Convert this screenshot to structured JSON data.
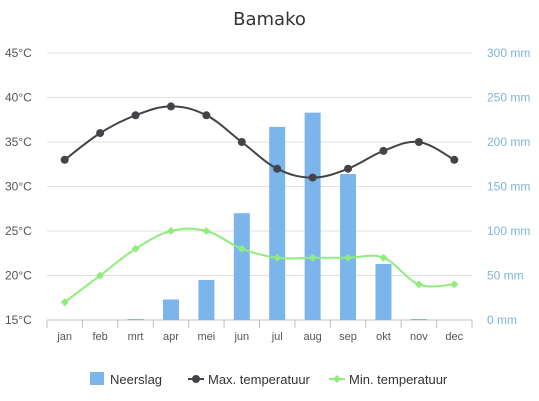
{
  "chart_data": {
    "type": "bar",
    "title": "Bamako",
    "categories": [
      "jan",
      "feb",
      "mrt",
      "apr",
      "mei",
      "jun",
      "jul",
      "aug",
      "sep",
      "okt",
      "nov",
      "dec"
    ],
    "series": [
      {
        "name": "Neerslag",
        "type": "bar",
        "axis": "right",
        "color": "#7cb5ec",
        "values": [
          0,
          0,
          1,
          23,
          45,
          120,
          217,
          233,
          164,
          63,
          1,
          0
        ]
      },
      {
        "name": "Max. temperatuur",
        "type": "line",
        "axis": "left",
        "color": "#434348",
        "values": [
          33,
          36,
          38,
          39,
          38,
          35,
          32,
          31,
          32,
          34,
          35,
          33
        ]
      },
      {
        "name": "Min. temperatuur",
        "type": "line",
        "axis": "left",
        "color": "#90ed7d",
        "values": [
          17,
          20,
          23,
          25,
          25,
          23,
          22,
          22,
          22,
          22,
          19,
          19
        ]
      }
    ],
    "y_left": {
      "ylim": [
        15,
        45
      ],
      "ticks": [
        15,
        20,
        25,
        30,
        35,
        40,
        45
      ],
      "tick_labels": [
        "15°C",
        "20°C",
        "25°C",
        "30°C",
        "35°C",
        "40°C",
        "45°C"
      ]
    },
    "y_right": {
      "ylim": [
        0,
        300
      ],
      "ticks": [
        0,
        50,
        100,
        150,
        200,
        250,
        300
      ],
      "tick_labels": [
        "0 mm",
        "50 mm",
        "100 mm",
        "150 mm",
        "200 mm",
        "250 mm",
        "300 mm"
      ]
    },
    "grid": true,
    "legend_position": "bottom"
  }
}
